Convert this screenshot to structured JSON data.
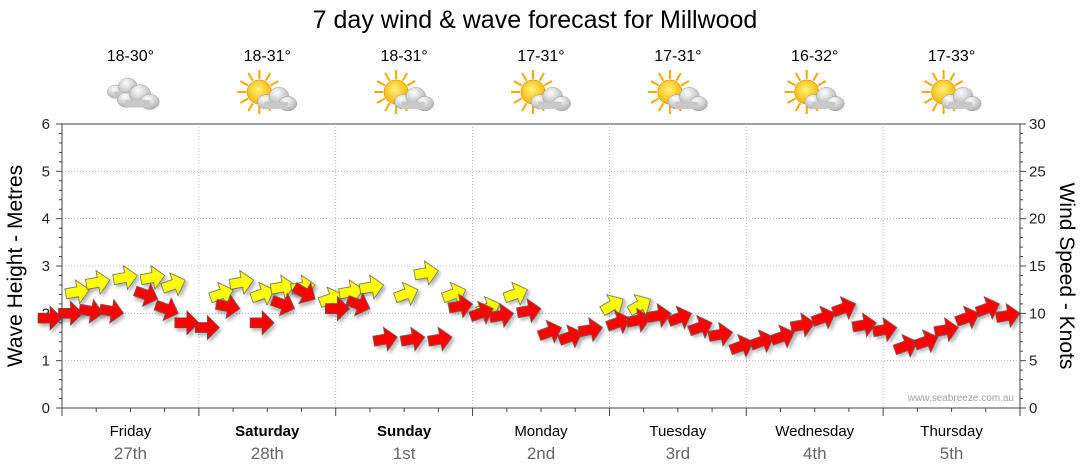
{
  "chart_data": {
    "type": "line",
    "title": "7 day wind & wave forecast for Millwood",
    "ylabel_left": "Wave Height - Metres",
    "ylabel_right": "Wind Speed - Knots",
    "ylim_left": [
      0,
      6
    ],
    "ylim_right": [
      0,
      30
    ],
    "yticks_left": [
      "0",
      "1",
      "2",
      "3",
      "4",
      "5",
      "6"
    ],
    "yticks_right": [
      "0",
      "5",
      "10",
      "15",
      "20",
      "25",
      "30"
    ],
    "grid": true,
    "watermark": "www.seabreeze.com.au",
    "colors": {
      "wind_arrow": "#ff0000",
      "wave_arrow": "#ffff00",
      "arrow_outline": "#555555",
      "grid": "#aaaaaa"
    },
    "days": [
      {
        "name": "Friday",
        "date": "27th",
        "bold": false,
        "temp": "18-30°",
        "icon": "cloudy-icon"
      },
      {
        "name": "Saturday",
        "date": "28th",
        "bold": true,
        "temp": "18-31°",
        "icon": "partly-sunny-icon"
      },
      {
        "name": "Sunday",
        "date": "1st",
        "bold": true,
        "temp": "18-31°",
        "icon": "partly-sunny-icon"
      },
      {
        "name": "Monday",
        "date": "2nd",
        "bold": false,
        "temp": "17-31°",
        "icon": "partly-sunny-icon"
      },
      {
        "name": "Tuesday",
        "date": "3rd",
        "bold": false,
        "temp": "17-31°",
        "icon": "partly-sunny-icon"
      },
      {
        "name": "Wednesday",
        "date": "4th",
        "bold": false,
        "temp": "16-32°",
        "icon": "partly-sunny-icon"
      },
      {
        "name": "Thursday",
        "date": "5th",
        "bold": false,
        "temp": "17-33°",
        "icon": "partly-sunny-icon"
      }
    ],
    "series": [
      {
        "name": "Wind",
        "unit": "knots",
        "x_day": [
          0.0,
          0.15,
          0.3,
          0.45,
          0.7,
          0.85,
          1.0,
          1.15,
          1.3,
          1.55,
          1.7,
          1.85,
          2.1,
          2.25,
          2.45,
          2.65,
          2.85,
          3.0,
          3.15,
          3.3,
          3.5,
          3.65,
          3.8,
          3.95,
          4.15,
          4.3,
          4.45,
          4.6,
          4.75,
          4.9,
          5.05,
          5.2,
          5.35,
          5.5,
          5.65,
          5.8,
          5.95,
          6.1,
          6.25,
          6.4,
          6.55,
          6.7,
          6.85,
          7.0
        ],
        "values": [
          9.5,
          10,
          10,
          10,
          11.5,
          10,
          9,
          8.5,
          10.5,
          9,
          10.5,
          11.5,
          10.5,
          10.5,
          7.5,
          7.5,
          7.5,
          11,
          10.5,
          10,
          10.5,
          8.5,
          8,
          8.5,
          9.5,
          9.5,
          10,
          10,
          9,
          8,
          7,
          7.5,
          8,
          9,
          10,
          11,
          9,
          8.5,
          7,
          7.5,
          8.5,
          10,
          11,
          10
        ],
        "direction_deg": [
          90,
          90,
          80,
          80,
          70,
          70,
          90,
          90,
          80,
          90,
          70,
          60,
          90,
          70,
          100,
          100,
          100,
          100,
          110,
          100,
          100,
          110,
          110,
          100,
          110,
          100,
          100,
          110,
          110,
          100,
          110,
          110,
          110,
          100,
          110,
          110,
          100,
          100,
          110,
          110,
          100,
          110,
          110,
          100
        ]
      },
      {
        "name": "Wave",
        "unit": "metres",
        "x_day": [
          0.2,
          0.35,
          0.55,
          0.75,
          0.9,
          1.25,
          1.4,
          1.55,
          1.7,
          1.85,
          2.05,
          2.2,
          2.35,
          2.6,
          2.75,
          2.95,
          3.2,
          3.4,
          4.1,
          4.3
        ],
        "values": [
          2.5,
          2.7,
          2.8,
          2.8,
          2.7,
          2.5,
          2.7,
          2.5,
          2.6,
          2.6,
          2.4,
          2.5,
          2.6,
          2.5,
          2.9,
          2.5,
          2.2,
          2.5,
          2.3,
          2.3
        ],
        "direction_deg": [
          100,
          100,
          100,
          100,
          110,
          110,
          100,
          110,
          100,
          100,
          110,
          100,
          100,
          110,
          100,
          110,
          110,
          110,
          120,
          120
        ]
      }
    ]
  }
}
